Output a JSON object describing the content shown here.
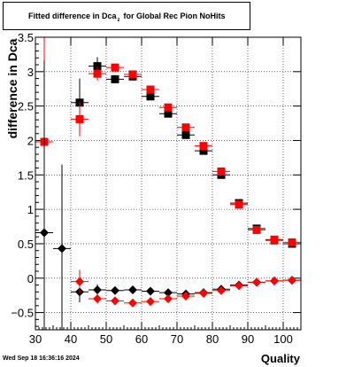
{
  "chart_data": {
    "type": "scatter",
    "title": "Fitted difference in Dca",
    "title_subscript": "z",
    "title_suffix": "for Global Rec Pion NoHits",
    "ylabel": "difference in Dca",
    "xlabel": "Quality",
    "xlim": [
      30,
      105
    ],
    "ylim": [
      -0.75,
      3.5
    ],
    "x_ticks": [
      30,
      40,
      50,
      60,
      70,
      80,
      90,
      100
    ],
    "y_ticks": [
      -0.5,
      0,
      0.5,
      1,
      1.5,
      2,
      2.5,
      3,
      3.5
    ],
    "y_tick_labels": [
      "−0.5",
      "0",
      "0.5",
      "1",
      "1.5",
      "2",
      "2.5",
      "3",
      "3.5"
    ],
    "grid": true,
    "x_half_width": 2.5,
    "series": [
      {
        "marker": "square",
        "color": "#000000",
        "points": [
          {
            "x": 42.5,
            "y": 2.55,
            "err": 0.35
          },
          {
            "x": 47.5,
            "y": 3.08,
            "err": 0.13
          },
          {
            "x": 52.5,
            "y": 2.89,
            "err": 0.06
          },
          {
            "x": 57.5,
            "y": 2.93,
            "err": 0.05
          },
          {
            "x": 62.5,
            "y": 2.64,
            "err": 0.04
          },
          {
            "x": 67.5,
            "y": 2.39,
            "err": 0.03
          },
          {
            "x": 72.5,
            "y": 2.08,
            "err": 0.03
          },
          {
            "x": 77.5,
            "y": 1.85,
            "err": 0.03
          },
          {
            "x": 82.5,
            "y": 1.5,
            "err": 0.02
          },
          {
            "x": 87.5,
            "y": 1.09,
            "err": 0.02
          },
          {
            "x": 92.5,
            "y": 0.72,
            "err": 0.02
          },
          {
            "x": 97.5,
            "y": 0.55,
            "err": 0.02
          },
          {
            "x": 102.5,
            "y": 0.5,
            "err": 0.02
          }
        ]
      },
      {
        "marker": "square",
        "color": "#ff0000",
        "points": [
          {
            "x": 32.5,
            "y": 1.98,
            "err": 2.0
          },
          {
            "x": 42.5,
            "y": 2.31,
            "err": 0.25
          },
          {
            "x": 47.5,
            "y": 2.97,
            "err": 0.1
          },
          {
            "x": 52.5,
            "y": 3.06,
            "err": 0.05
          },
          {
            "x": 57.5,
            "y": 2.96,
            "err": 0.04
          },
          {
            "x": 62.5,
            "y": 2.74,
            "err": 0.04
          },
          {
            "x": 67.5,
            "y": 2.48,
            "err": 0.03
          },
          {
            "x": 72.5,
            "y": 2.19,
            "err": 0.03
          },
          {
            "x": 77.5,
            "y": 1.92,
            "err": 0.03
          },
          {
            "x": 82.5,
            "y": 1.55,
            "err": 0.02
          },
          {
            "x": 87.5,
            "y": 1.07,
            "err": 0.02
          },
          {
            "x": 92.5,
            "y": 0.7,
            "err": 0.02
          },
          {
            "x": 97.5,
            "y": 0.56,
            "err": 0.02
          },
          {
            "x": 102.5,
            "y": 0.52,
            "err": 0.02
          }
        ]
      },
      {
        "marker": "diamond",
        "color": "#000000",
        "points": [
          {
            "x": 32.5,
            "y": 0.66,
            "err": 2.5
          },
          {
            "x": 37.5,
            "y": 0.43,
            "err": 1.22
          },
          {
            "x": 42.5,
            "y": -0.2,
            "err": 0.15
          },
          {
            "x": 47.5,
            "y": -0.17,
            "err": 0.08
          },
          {
            "x": 52.5,
            "y": -0.18,
            "err": 0.04
          },
          {
            "x": 57.5,
            "y": -0.17,
            "err": 0.03
          },
          {
            "x": 62.5,
            "y": -0.19,
            "err": 0.03
          },
          {
            "x": 67.5,
            "y": -0.21,
            "err": 0.03
          },
          {
            "x": 72.5,
            "y": -0.23,
            "err": 0.02
          },
          {
            "x": 77.5,
            "y": -0.21,
            "err": 0.02
          },
          {
            "x": 82.5,
            "y": -0.16,
            "err": 0.02
          },
          {
            "x": 87.5,
            "y": -0.1,
            "err": 0.02
          },
          {
            "x": 92.5,
            "y": -0.06,
            "err": 0.02
          },
          {
            "x": 97.5,
            "y": -0.04,
            "err": 0.02
          },
          {
            "x": 102.5,
            "y": -0.03,
            "err": 0.02
          }
        ]
      },
      {
        "marker": "diamond",
        "color": "#ff0000",
        "points": [
          {
            "x": 42.5,
            "y": -0.05,
            "err": 0.17
          },
          {
            "x": 47.5,
            "y": -0.3,
            "err": 0.07
          },
          {
            "x": 52.5,
            "y": -0.33,
            "err": 0.04
          },
          {
            "x": 57.5,
            "y": -0.36,
            "err": 0.03
          },
          {
            "x": 62.5,
            "y": -0.34,
            "err": 0.03
          },
          {
            "x": 67.5,
            "y": -0.3,
            "err": 0.03
          },
          {
            "x": 72.5,
            "y": -0.26,
            "err": 0.02
          },
          {
            "x": 77.5,
            "y": -0.22,
            "err": 0.02
          },
          {
            "x": 82.5,
            "y": -0.18,
            "err": 0.02
          },
          {
            "x": 87.5,
            "y": -0.11,
            "err": 0.02
          },
          {
            "x": 92.5,
            "y": -0.06,
            "err": 0.02
          },
          {
            "x": 97.5,
            "y": -0.04,
            "err": 0.02
          },
          {
            "x": 102.5,
            "y": -0.03,
            "err": 0.02
          }
        ]
      }
    ]
  },
  "timestamp": "Wed Sep 18 16:36:16 2024"
}
